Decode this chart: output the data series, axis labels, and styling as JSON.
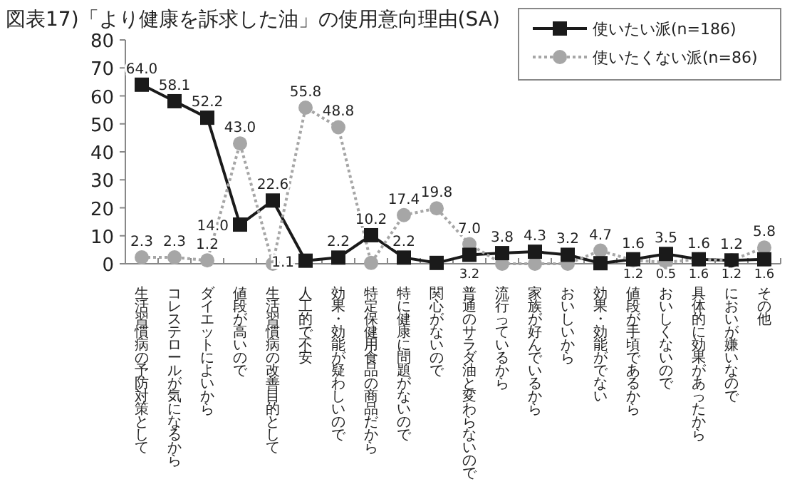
{
  "chart_data": {
    "type": "line",
    "title": "図表17)「より健康を訴求した油」の使用意向理由(SA)",
    "categories": [
      "生活習慣病の予防対策として",
      "コレステロールが気になるから",
      "ダイエットによいから",
      "値段が高いので",
      "生活習慣病の改善目的として",
      "人工的で不安",
      "効果・効能が疑わしいので",
      "特定保健用食品の商品だから",
      "特に健康に問題がないので",
      "関心がないので",
      "普通のサラダ油と変わらないので",
      "流行っているから",
      "家族が好んでいるから",
      "おいしいから",
      "効果・効能がでない",
      "値段が手頃であるから",
      "おいしくないので",
      "具体的に効果があったから",
      "においが嫌いなので",
      "その他"
    ],
    "series": [
      {
        "name": "使いたい派(n=186)",
        "color": "#1a1a1a",
        "marker": "square",
        "line_style": "solid",
        "values": [
          64.0,
          58.1,
          52.2,
          14.0,
          22.6,
          1.1,
          2.2,
          10.2,
          2.2,
          0.3,
          3.2,
          3.8,
          4.3,
          3.2,
          0.2,
          1.6,
          3.5,
          1.6,
          1.2,
          1.6
        ],
        "value_labels": [
          "64.0",
          "58.1",
          "52.2",
          "14.0",
          "22.6",
          "1.1",
          "2.2",
          "10.2",
          "2.2",
          null,
          "3.2",
          "3.8",
          "4.3",
          "3.2",
          null,
          "1.6",
          "3.5",
          "1.6",
          "1.2",
          "1.6"
        ]
      },
      {
        "name": "使いたくない派(n=86)",
        "color": "#a6a6a6",
        "marker": "circle",
        "line_style": "dotted",
        "values": [
          2.3,
          2.3,
          1.2,
          43.0,
          0.0,
          55.8,
          48.8,
          0.3,
          17.4,
          19.8,
          7.0,
          0.0,
          0.0,
          0.0,
          4.7,
          1.2,
          0.5,
          1.6,
          1.2,
          5.8
        ],
        "value_labels": [
          "2.3",
          "2.3",
          "1.2",
          "43.0",
          null,
          "55.8",
          "48.8",
          null,
          "17.4",
          "19.8",
          "7.0",
          null,
          null,
          null,
          "4.7",
          "1.2",
          "0.5",
          "1.6",
          "1.2",
          "5.8"
        ]
      }
    ],
    "ylim": [
      0,
      80
    ],
    "yticks": [
      0,
      10,
      20,
      30,
      40,
      50,
      60,
      70,
      80
    ],
    "grid": false,
    "legend": "top right"
  }
}
